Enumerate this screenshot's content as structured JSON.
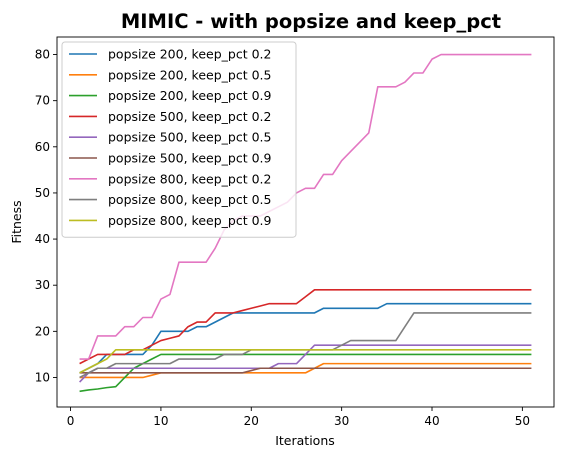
{
  "chart_data": {
    "type": "line",
    "title": "MIMIC - with popsize and keep_pct",
    "xlabel": "Iterations",
    "ylabel": "Fitness",
    "xlim": [
      -1.5,
      53.5
    ],
    "ylim": [
      3.6,
      83.8
    ],
    "xticks": [
      0,
      10,
      20,
      30,
      40,
      50
    ],
    "yticks": [
      10,
      20,
      30,
      40,
      50,
      60,
      70,
      80
    ],
    "grid": false,
    "legend_position": "top-left",
    "series": [
      {
        "name": "popsize 200, keep_pct 0.2",
        "color": "#1f77b4",
        "x": [
          1,
          2,
          3,
          4,
          5,
          6,
          7,
          8,
          9,
          10,
          11,
          12,
          13,
          14,
          15,
          16,
          17,
          18,
          19,
          20,
          21,
          22,
          23,
          24,
          25,
          26,
          27,
          28,
          29,
          30,
          31,
          32,
          33,
          34,
          35,
          36,
          37,
          38,
          39,
          40,
          41,
          42,
          43,
          44,
          45,
          46,
          47,
          48,
          49,
          50,
          51
        ],
        "y": [
          11,
          12,
          13,
          15,
          15,
          15,
          15,
          15,
          17,
          20,
          20,
          20,
          20,
          21,
          21,
          22,
          23,
          24,
          24,
          24,
          24,
          24,
          24,
          24,
          24,
          24,
          24,
          25,
          25,
          25,
          25,
          25,
          25,
          25,
          26,
          26,
          26,
          26,
          26,
          26,
          26,
          26,
          26,
          26,
          26,
          26,
          26,
          26,
          26,
          26,
          26
        ]
      },
      {
        "name": "popsize 200, keep_pct 0.5",
        "color": "#ff7f0e",
        "x": [
          1,
          2,
          3,
          4,
          5,
          6,
          7,
          8,
          9,
          10,
          11,
          12,
          13,
          14,
          15,
          16,
          17,
          18,
          19,
          20,
          21,
          22,
          23,
          24,
          25,
          26,
          27,
          28,
          29,
          30,
          31,
          32,
          33,
          34,
          35,
          36,
          37,
          38,
          39,
          40,
          41,
          42,
          43,
          44,
          45,
          46,
          47,
          48,
          49,
          50,
          51
        ],
        "y": [
          10,
          10,
          10,
          10,
          10,
          10,
          10,
          10,
          10.5,
          11,
          11,
          11,
          11,
          11,
          11,
          11,
          11,
          11,
          11,
          11,
          11,
          11,
          11,
          11,
          11,
          11,
          12,
          13,
          13,
          13,
          13,
          13,
          13,
          13,
          13,
          13,
          13,
          13,
          13,
          13,
          13,
          13,
          13,
          13,
          13,
          13,
          13,
          13,
          13,
          13,
          13
        ]
      },
      {
        "name": "popsize 200, keep_pct 0.9",
        "color": "#2ca02c",
        "x": [
          1,
          2,
          3,
          4,
          5,
          6,
          7,
          8,
          9,
          10,
          11,
          12,
          13,
          14,
          15,
          16,
          17,
          18,
          19,
          20,
          21,
          22,
          23,
          24,
          25,
          26,
          27,
          28,
          29,
          30,
          31,
          32,
          33,
          34,
          35,
          36,
          37,
          38,
          39,
          40,
          41,
          42,
          43,
          44,
          45,
          46,
          47,
          48,
          49,
          50,
          51
        ],
        "y": [
          7,
          7.3,
          7.5,
          7.8,
          8,
          10,
          12,
          13,
          14,
          15,
          15,
          15,
          15,
          15,
          15,
          15,
          15,
          15,
          15,
          15,
          15,
          15,
          15,
          15,
          15,
          15,
          15,
          15,
          15,
          15,
          15,
          15,
          15,
          15,
          15,
          15,
          15,
          15,
          15,
          15,
          15,
          15,
          15,
          15,
          15,
          15,
          15,
          15,
          15,
          15,
          15
        ]
      },
      {
        "name": "popsize 500, keep_pct 0.2",
        "color": "#d62728",
        "x": [
          1,
          2,
          3,
          4,
          5,
          6,
          7,
          8,
          9,
          10,
          11,
          12,
          13,
          14,
          15,
          16,
          17,
          18,
          19,
          20,
          21,
          22,
          23,
          24,
          25,
          26,
          27,
          28,
          29,
          30,
          31,
          32,
          33,
          34,
          35,
          36,
          37,
          38,
          39,
          40,
          41,
          42,
          43,
          44,
          45,
          46,
          47,
          48,
          49,
          50,
          51
        ],
        "y": [
          13,
          14,
          15,
          15,
          15,
          15,
          16,
          16,
          17,
          18,
          18.5,
          19,
          21,
          22,
          22,
          24,
          24,
          24,
          24.5,
          25,
          25.5,
          26,
          26,
          26,
          26,
          27.5,
          29,
          29,
          29,
          29,
          29,
          29,
          29,
          29,
          29,
          29,
          29,
          29,
          29,
          29,
          29,
          29,
          29,
          29,
          29,
          29,
          29,
          29,
          29,
          29,
          29
        ]
      },
      {
        "name": "popsize 500, keep_pct 0.5",
        "color": "#9467bd",
        "x": [
          1,
          2,
          3,
          4,
          5,
          6,
          7,
          8,
          9,
          10,
          11,
          12,
          13,
          14,
          15,
          16,
          17,
          18,
          19,
          20,
          21,
          22,
          23,
          24,
          25,
          26,
          27,
          28,
          29,
          30,
          31,
          32,
          33,
          34,
          35,
          36,
          37,
          38,
          39,
          40,
          41,
          42,
          43,
          44,
          45,
          46,
          47,
          48,
          49,
          50,
          51
        ],
        "y": [
          9,
          11,
          12,
          12,
          12,
          12,
          12,
          12,
          12,
          12,
          12,
          12,
          12,
          12,
          12,
          12,
          12,
          12,
          12,
          12,
          12,
          12,
          13,
          13,
          13,
          15,
          17,
          17,
          17,
          17,
          17,
          17,
          17,
          17,
          17,
          17,
          17,
          17,
          17,
          17,
          17,
          17,
          17,
          17,
          17,
          17,
          17,
          17,
          17,
          17,
          17
        ]
      },
      {
        "name": "popsize 500, keep_pct 0.9",
        "color": "#8c564b",
        "x": [
          1,
          2,
          3,
          4,
          5,
          6,
          7,
          8,
          9,
          10,
          11,
          12,
          13,
          14,
          15,
          16,
          17,
          18,
          19,
          20,
          21,
          22,
          23,
          24,
          25,
          26,
          27,
          28,
          29,
          30,
          31,
          32,
          33,
          34,
          35,
          36,
          37,
          38,
          39,
          40,
          41,
          42,
          43,
          44,
          45,
          46,
          47,
          48,
          49,
          50,
          51
        ],
        "y": [
          11,
          11,
          11,
          11,
          11,
          11,
          11,
          11,
          11,
          11,
          11,
          11,
          11,
          11,
          11,
          11,
          11,
          11,
          11,
          11.5,
          12,
          12,
          12,
          12,
          12,
          12,
          12,
          12,
          12,
          12,
          12,
          12,
          12,
          12,
          12,
          12,
          12,
          12,
          12,
          12,
          12,
          12,
          12,
          12,
          12,
          12,
          12,
          12,
          12,
          12,
          12
        ]
      },
      {
        "name": "popsize 800, keep_pct 0.2",
        "color": "#e377c2",
        "x": [
          1,
          2,
          3,
          4,
          5,
          6,
          7,
          8,
          9,
          10,
          11,
          12,
          13,
          14,
          15,
          16,
          17,
          18,
          19,
          20,
          21,
          22,
          23,
          24,
          25,
          26,
          27,
          28,
          29,
          30,
          31,
          32,
          33,
          34,
          35,
          36,
          37,
          38,
          39,
          40,
          41,
          42,
          43,
          44,
          45,
          46,
          47,
          48,
          49,
          50,
          51
        ],
        "y": [
          14,
          14,
          19,
          19,
          19,
          21,
          21,
          23,
          23,
          27,
          28,
          35,
          35,
          35,
          35,
          38,
          42,
          44,
          45,
          45,
          45,
          46,
          47,
          48,
          50,
          51,
          51,
          54,
          54,
          57,
          59,
          61,
          63,
          73,
          73,
          73,
          74,
          76,
          76,
          79,
          80,
          80,
          80,
          80,
          80,
          80,
          80,
          80,
          80,
          80,
          80
        ]
      },
      {
        "name": "popsize 800, keep_pct 0.5",
        "color": "#7f7f7f",
        "x": [
          1,
          2,
          3,
          4,
          5,
          6,
          7,
          8,
          9,
          10,
          11,
          12,
          13,
          14,
          15,
          16,
          17,
          18,
          19,
          20,
          21,
          22,
          23,
          24,
          25,
          26,
          27,
          28,
          29,
          30,
          31,
          32,
          33,
          34,
          35,
          36,
          37,
          38,
          39,
          40,
          41,
          42,
          43,
          44,
          45,
          46,
          47,
          48,
          49,
          50,
          51
        ],
        "y": [
          10,
          11,
          12,
          12,
          13,
          13,
          13,
          13,
          13,
          13,
          13,
          14,
          14,
          14,
          14,
          14,
          15,
          15,
          15,
          16,
          16,
          16,
          16,
          16,
          16,
          16,
          16,
          16,
          16,
          17,
          18,
          18,
          18,
          18,
          18,
          18,
          21,
          24,
          24,
          24,
          24,
          24,
          24,
          24,
          24,
          24,
          24,
          24,
          24,
          24,
          24
        ]
      },
      {
        "name": "popsize 800, keep_pct 0.9",
        "color": "#bcbd22",
        "x": [
          1,
          2,
          3,
          4,
          5,
          6,
          7,
          8,
          9,
          10,
          11,
          12,
          13,
          14,
          15,
          16,
          17,
          18,
          19,
          20,
          21,
          22,
          23,
          24,
          25,
          26,
          27,
          28,
          29,
          30,
          31,
          32,
          33,
          34,
          35,
          36,
          37,
          38,
          39,
          40,
          41,
          42,
          43,
          44,
          45,
          46,
          47,
          48,
          49,
          50,
          51
        ],
        "y": [
          11,
          12,
          13,
          14,
          16,
          16,
          16,
          16,
          16,
          16,
          16,
          16,
          16,
          16,
          16,
          16,
          16,
          16,
          16,
          16,
          16,
          16,
          16,
          16,
          16,
          16,
          16,
          16,
          16,
          16,
          16,
          16,
          16,
          16,
          16,
          16,
          16,
          16,
          16,
          16,
          16,
          16,
          16,
          16,
          16,
          16,
          16,
          16,
          16,
          16,
          16
        ]
      }
    ]
  }
}
